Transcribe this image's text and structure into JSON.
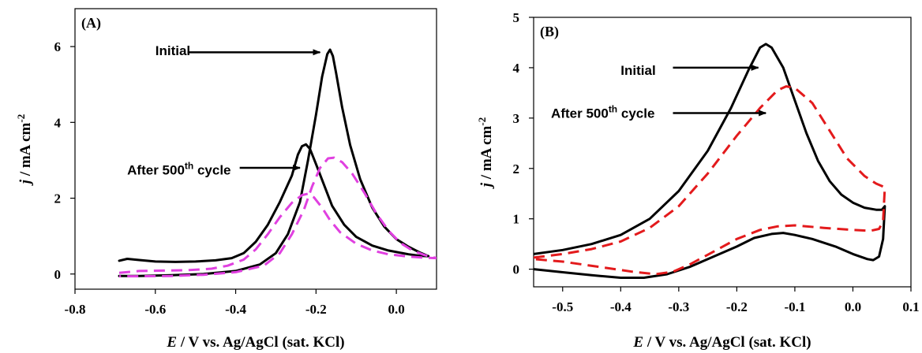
{
  "chart_data": [
    {
      "type": "line",
      "panel_label": "(A)",
      "xlabel_italic": "E",
      "xlabel_rest": " / V vs. Ag/AgCl (sat. KCl)",
      "ylabel_italic": "j",
      "ylabel_rest": " / mA cm",
      "ylabel_sup": "-2",
      "xlim": [
        -0.8,
        0.1
      ],
      "ylim": [
        -0.4,
        7
      ],
      "x_ticks": [
        -0.8,
        -0.6,
        -0.4,
        -0.2,
        0.0
      ],
      "x_tick_labels": [
        "-0.8",
        "-0.6",
        "-0.4",
        "-0.2",
        "0.0"
      ],
      "y_ticks": [
        0,
        2,
        4,
        6
      ],
      "y_tick_labels": [
        "0",
        "2",
        "4",
        "6"
      ],
      "grid": false,
      "series": [
        {
          "color": "#000000",
          "dash": "solid",
          "points": [
            [
              -0.69,
              0.35
            ],
            [
              -0.67,
              0.4
            ],
            [
              -0.64,
              0.37
            ],
            [
              -0.6,
              0.33
            ],
            [
              -0.55,
              0.32
            ],
            [
              -0.5,
              0.33
            ],
            [
              -0.45,
              0.36
            ],
            [
              -0.41,
              0.42
            ],
            [
              -0.38,
              0.55
            ],
            [
              -0.35,
              0.85
            ],
            [
              -0.32,
              1.3
            ],
            [
              -0.29,
              1.9
            ],
            [
              -0.26,
              2.6
            ],
            [
              -0.245,
              3.15
            ],
            [
              -0.235,
              3.37
            ],
            [
              -0.225,
              3.42
            ],
            [
              -0.215,
              3.3
            ],
            [
              -0.2,
              2.9
            ],
            [
              -0.18,
              2.35
            ],
            [
              -0.16,
              1.8
            ],
            [
              -0.13,
              1.3
            ],
            [
              -0.1,
              0.98
            ],
            [
              -0.06,
              0.75
            ],
            [
              -0.02,
              0.62
            ],
            [
              0.03,
              0.52
            ],
            [
              0.06,
              0.48
            ],
            [
              0.08,
              0.47
            ],
            [
              0.06,
              0.56
            ],
            [
              0.03,
              0.72
            ],
            [
              0.0,
              0.92
            ],
            [
              -0.03,
              1.25
            ],
            [
              -0.06,
              1.75
            ],
            [
              -0.09,
              2.5
            ],
            [
              -0.115,
              3.4
            ],
            [
              -0.135,
              4.4
            ],
            [
              -0.15,
              5.3
            ],
            [
              -0.158,
              5.75
            ],
            [
              -0.165,
              5.92
            ],
            [
              -0.172,
              5.8
            ],
            [
              -0.185,
              5.2
            ],
            [
              -0.2,
              4.2
            ],
            [
              -0.22,
              3.0
            ],
            [
              -0.24,
              1.9
            ],
            [
              -0.27,
              1.05
            ],
            [
              -0.3,
              0.55
            ],
            [
              -0.34,
              0.25
            ],
            [
              -0.4,
              0.08
            ],
            [
              -0.48,
              0.0
            ],
            [
              -0.56,
              -0.03
            ],
            [
              -0.64,
              -0.05
            ],
            [
              -0.69,
              -0.05
            ]
          ]
        },
        {
          "color": "#e040e0",
          "dash": "dashed",
          "points": [
            [
              -0.69,
              0.03
            ],
            [
              -0.64,
              0.08
            ],
            [
              -0.58,
              0.09
            ],
            [
              -0.52,
              0.1
            ],
            [
              -0.46,
              0.14
            ],
            [
              -0.42,
              0.22
            ],
            [
              -0.38,
              0.38
            ],
            [
              -0.35,
              0.65
            ],
            [
              -0.32,
              1.05
            ],
            [
              -0.29,
              1.5
            ],
            [
              -0.26,
              1.88
            ],
            [
              -0.235,
              2.08
            ],
            [
              -0.22,
              2.12
            ],
            [
              -0.205,
              2.02
            ],
            [
              -0.185,
              1.75
            ],
            [
              -0.165,
              1.42
            ],
            [
              -0.14,
              1.1
            ],
            [
              -0.1,
              0.8
            ],
            [
              -0.06,
              0.62
            ],
            [
              -0.02,
              0.52
            ],
            [
              0.03,
              0.46
            ],
            [
              0.07,
              0.43
            ],
            [
              0.1,
              0.42
            ],
            [
              0.07,
              0.5
            ],
            [
              0.04,
              0.62
            ],
            [
              0.01,
              0.82
            ],
            [
              -0.02,
              1.15
            ],
            [
              -0.05,
              1.6
            ],
            [
              -0.08,
              2.15
            ],
            [
              -0.11,
              2.65
            ],
            [
              -0.135,
              2.95
            ],
            [
              -0.155,
              3.07
            ],
            [
              -0.17,
              3.05
            ],
            [
              -0.19,
              2.8
            ],
            [
              -0.21,
              2.3
            ],
            [
              -0.23,
              1.7
            ],
            [
              -0.26,
              1.05
            ],
            [
              -0.29,
              0.55
            ],
            [
              -0.33,
              0.22
            ],
            [
              -0.4,
              0.05
            ],
            [
              -0.48,
              -0.02
            ],
            [
              -0.56,
              -0.05
            ],
            [
              -0.64,
              -0.06
            ],
            [
              -0.69,
              -0.06
            ]
          ]
        }
      ],
      "annotations": [
        {
          "text": "Initial",
          "sup": "",
          "text_x": -0.6,
          "text_y": 5.9,
          "arrow_from": [
            -0.52,
            5.85
          ],
          "arrow_to": [
            -0.19,
            5.85
          ]
        },
        {
          "text": "After 500",
          "sup": "th",
          "sup_after": " cycle",
          "text_x": -0.67,
          "text_y": 2.75,
          "arrow_from": [
            -0.39,
            2.8
          ],
          "arrow_to": [
            -0.24,
            2.8
          ]
        }
      ]
    },
    {
      "type": "line",
      "panel_label": "(B)",
      "xlabel_italic": "E",
      "xlabel_rest": " / V vs. Ag/AgCl (sat. KCl)",
      "ylabel_italic": "j",
      "ylabel_rest": " / mA cm",
      "ylabel_sup": "-2",
      "xlim": [
        -0.55,
        0.1
      ],
      "ylim": [
        -0.35,
        5
      ],
      "x_ticks": [
        -0.5,
        -0.4,
        -0.3,
        -0.2,
        -0.1,
        0.0,
        0.1
      ],
      "x_tick_labels": [
        "-0.5",
        "-0.4",
        "-0.3",
        "-0.2",
        "-0.1",
        "0.0",
        "0.1"
      ],
      "y_ticks": [
        0,
        1,
        2,
        3,
        4,
        5
      ],
      "y_tick_labels": [
        "0",
        "1",
        "2",
        "3",
        "4",
        "5"
      ],
      "grid": false,
      "series": [
        {
          "color": "#000000",
          "dash": "solid",
          "points": [
            [
              -0.55,
              0.3
            ],
            [
              -0.5,
              0.38
            ],
            [
              -0.45,
              0.5
            ],
            [
              -0.4,
              0.68
            ],
            [
              -0.35,
              1.0
            ],
            [
              -0.3,
              1.55
            ],
            [
              -0.25,
              2.35
            ],
            [
              -0.21,
              3.2
            ],
            [
              -0.18,
              3.95
            ],
            [
              -0.16,
              4.4
            ],
            [
              -0.15,
              4.47
            ],
            [
              -0.14,
              4.4
            ],
            [
              -0.12,
              4.0
            ],
            [
              -0.1,
              3.35
            ],
            [
              -0.08,
              2.7
            ],
            [
              -0.06,
              2.15
            ],
            [
              -0.04,
              1.75
            ],
            [
              -0.02,
              1.48
            ],
            [
              0.0,
              1.32
            ],
            [
              0.02,
              1.22
            ],
            [
              0.04,
              1.18
            ],
            [
              0.05,
              1.18
            ],
            [
              0.055,
              1.25
            ],
            [
              0.052,
              0.6
            ],
            [
              0.045,
              0.25
            ],
            [
              0.035,
              0.18
            ],
            [
              0.025,
              0.2
            ],
            [
              0.0,
              0.3
            ],
            [
              -0.03,
              0.45
            ],
            [
              -0.07,
              0.6
            ],
            [
              -0.1,
              0.68
            ],
            [
              -0.12,
              0.72
            ],
            [
              -0.14,
              0.7
            ],
            [
              -0.17,
              0.62
            ],
            [
              -0.2,
              0.45
            ],
            [
              -0.24,
              0.25
            ],
            [
              -0.28,
              0.05
            ],
            [
              -0.32,
              -0.1
            ],
            [
              -0.36,
              -0.17
            ],
            [
              -0.4,
              -0.17
            ],
            [
              -0.45,
              -0.12
            ],
            [
              -0.5,
              -0.06
            ],
            [
              -0.55,
              0.0
            ]
          ]
        },
        {
          "color": "#e31a1c",
          "dash": "dashed",
          "points": [
            [
              -0.55,
              0.23
            ],
            [
              -0.5,
              0.3
            ],
            [
              -0.45,
              0.4
            ],
            [
              -0.4,
              0.55
            ],
            [
              -0.35,
              0.82
            ],
            [
              -0.3,
              1.25
            ],
            [
              -0.25,
              1.9
            ],
            [
              -0.2,
              2.65
            ],
            [
              -0.16,
              3.2
            ],
            [
              -0.13,
              3.55
            ],
            [
              -0.115,
              3.63
            ],
            [
              -0.1,
              3.6
            ],
            [
              -0.07,
              3.3
            ],
            [
              -0.04,
              2.75
            ],
            [
              -0.01,
              2.2
            ],
            [
              0.02,
              1.85
            ],
            [
              0.04,
              1.7
            ],
            [
              0.05,
              1.65
            ],
            [
              0.055,
              1.62
            ],
            [
              0.052,
              0.95
            ],
            [
              0.045,
              0.8
            ],
            [
              0.03,
              0.76
            ],
            [
              0.0,
              0.78
            ],
            [
              -0.05,
              0.82
            ],
            [
              -0.1,
              0.87
            ],
            [
              -0.13,
              0.85
            ],
            [
              -0.16,
              0.78
            ],
            [
              -0.2,
              0.6
            ],
            [
              -0.24,
              0.35
            ],
            [
              -0.28,
              0.1
            ],
            [
              -0.31,
              -0.05
            ],
            [
              -0.34,
              -0.1
            ],
            [
              -0.38,
              -0.05
            ],
            [
              -0.44,
              0.05
            ],
            [
              -0.5,
              0.15
            ],
            [
              -0.55,
              0.2
            ]
          ]
        }
      ],
      "annotations": [
        {
          "text": "Initial",
          "sup": "",
          "text_x": -0.4,
          "text_y": 3.95,
          "arrow_from": [
            -0.31,
            4.0
          ],
          "arrow_to": [
            -0.163,
            4.0
          ]
        },
        {
          "text": "After 500",
          "sup": "th",
          "sup_after": " cycle",
          "text_x": -0.52,
          "text_y": 3.1,
          "arrow_from": [
            -0.31,
            3.1
          ],
          "arrow_to": [
            -0.15,
            3.1
          ]
        }
      ]
    }
  ]
}
